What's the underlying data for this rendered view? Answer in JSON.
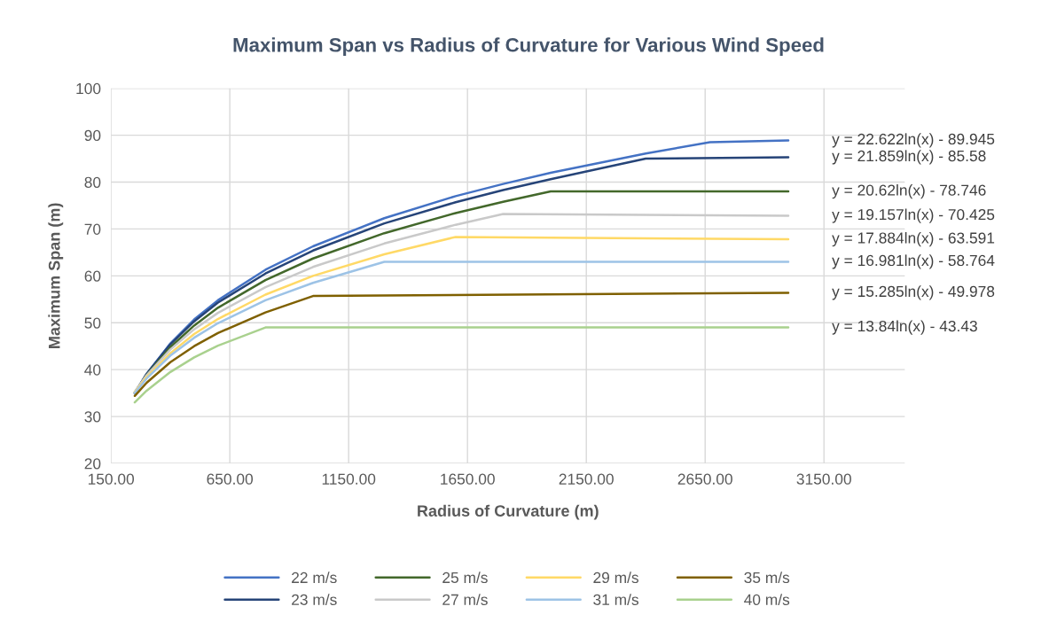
{
  "chart_data": {
    "type": "line",
    "title": "Maximum Span vs Radius of Curvature for Various Wind Speed",
    "xlabel": "Radius of Curvature (m)",
    "ylabel": "Maximum Span (m)",
    "xlim": [
      150,
      3490
    ],
    "ylim": [
      20,
      100
    ],
    "xticks": [
      {
        "value": 150,
        "label": "150.00"
      },
      {
        "value": 650,
        "label": "650.00"
      },
      {
        "value": 1150,
        "label": "1150.00"
      },
      {
        "value": 1650,
        "label": "1650.00"
      },
      {
        "value": 2150,
        "label": "2150.00"
      },
      {
        "value": 2650,
        "label": "2650.00"
      },
      {
        "value": 3150,
        "label": "3150.00"
      }
    ],
    "yticks": [
      20,
      30,
      40,
      50,
      60,
      70,
      80,
      90,
      100
    ],
    "grid": true,
    "legend": "bottom",
    "marker": "none",
    "line_style": "solid",
    "series": [
      {
        "name": "22 m/s",
        "color": "#4472c4",
        "x": [
          250,
          300,
          400,
          500,
          600,
          800,
          1000,
          1300,
          1600,
          1800,
          2000,
          2400,
          2670,
          3000
        ],
        "values": [
          34.9,
          39.1,
          45.6,
          50.7,
          54.8,
          61.3,
          66.3,
          72.3,
          77.0,
          79.6,
          82.0,
          86.1,
          88.5,
          88.9
        ]
      },
      {
        "name": "23 m/s",
        "color": "#264478",
        "x": [
          250,
          300,
          400,
          500,
          600,
          800,
          1000,
          1300,
          1600,
          1800,
          2000,
          2400,
          3000
        ],
        "values": [
          35.1,
          39.1,
          45.4,
          50.3,
          54.3,
          60.5,
          65.4,
          71.2,
          75.7,
          78.3,
          80.6,
          85.0,
          85.3
        ]
      },
      {
        "name": "25 m/s",
        "color": "#43682b",
        "x": [
          250,
          300,
          400,
          500,
          600,
          800,
          1000,
          1300,
          1600,
          1800,
          2000,
          3000
        ],
        "values": [
          35.1,
          38.9,
          44.8,
          49.4,
          53.2,
          59.1,
          63.7,
          69.1,
          73.4,
          75.8,
          78.0,
          78.0
        ]
      },
      {
        "name": "27 m/s",
        "color": "#c9c9c9",
        "x": [
          250,
          300,
          400,
          500,
          600,
          800,
          1000,
          1300,
          1600,
          1800,
          3000
        ],
        "values": [
          35.3,
          38.8,
          44.3,
          48.6,
          52.1,
          57.6,
          61.9,
          66.9,
          70.9,
          73.2,
          72.8
        ]
      },
      {
        "name": "29 m/s",
        "color": "#ffd966",
        "x": [
          250,
          300,
          400,
          500,
          600,
          800,
          1000,
          1300,
          1600,
          3000
        ],
        "values": [
          35.1,
          38.4,
          43.5,
          47.6,
          50.8,
          56.0,
          60.0,
          64.6,
          68.3,
          67.8
        ]
      },
      {
        "name": "31 m/s",
        "color": "#9dc3e6",
        "x": [
          250,
          300,
          400,
          500,
          600,
          800,
          1000,
          1300,
          3000
        ],
        "values": [
          35.0,
          38.1,
          43.0,
          46.8,
          49.9,
          54.8,
          58.5,
          63.0,
          63.0
        ]
      },
      {
        "name": "35 m/s",
        "color": "#7f6000",
        "x": [
          250,
          300,
          400,
          500,
          600,
          800,
          1000,
          3000
        ],
        "values": [
          34.4,
          37.2,
          41.6,
          45.0,
          47.8,
          52.2,
          55.7,
          56.4
        ]
      },
      {
        "name": "40 m/s",
        "color": "#a9d18e",
        "x": [
          250,
          300,
          400,
          500,
          600,
          800,
          3000
        ],
        "values": [
          33.0,
          35.5,
          39.5,
          42.6,
          45.1,
          49.0,
          49.0
        ]
      }
    ],
    "annotations": [
      "y = 22.622ln(x) - 89.945",
      "y = 21.859ln(x) - 85.58",
      "y = 20.62ln(x) - 78.746",
      "y = 19.157ln(x) - 70.425",
      "y = 17.884ln(x) - 63.591",
      "y = 16.981ln(x) - 58.764",
      "y = 15.285ln(x) - 49.978",
      "y = 13.84ln(x) - 43.43"
    ]
  }
}
